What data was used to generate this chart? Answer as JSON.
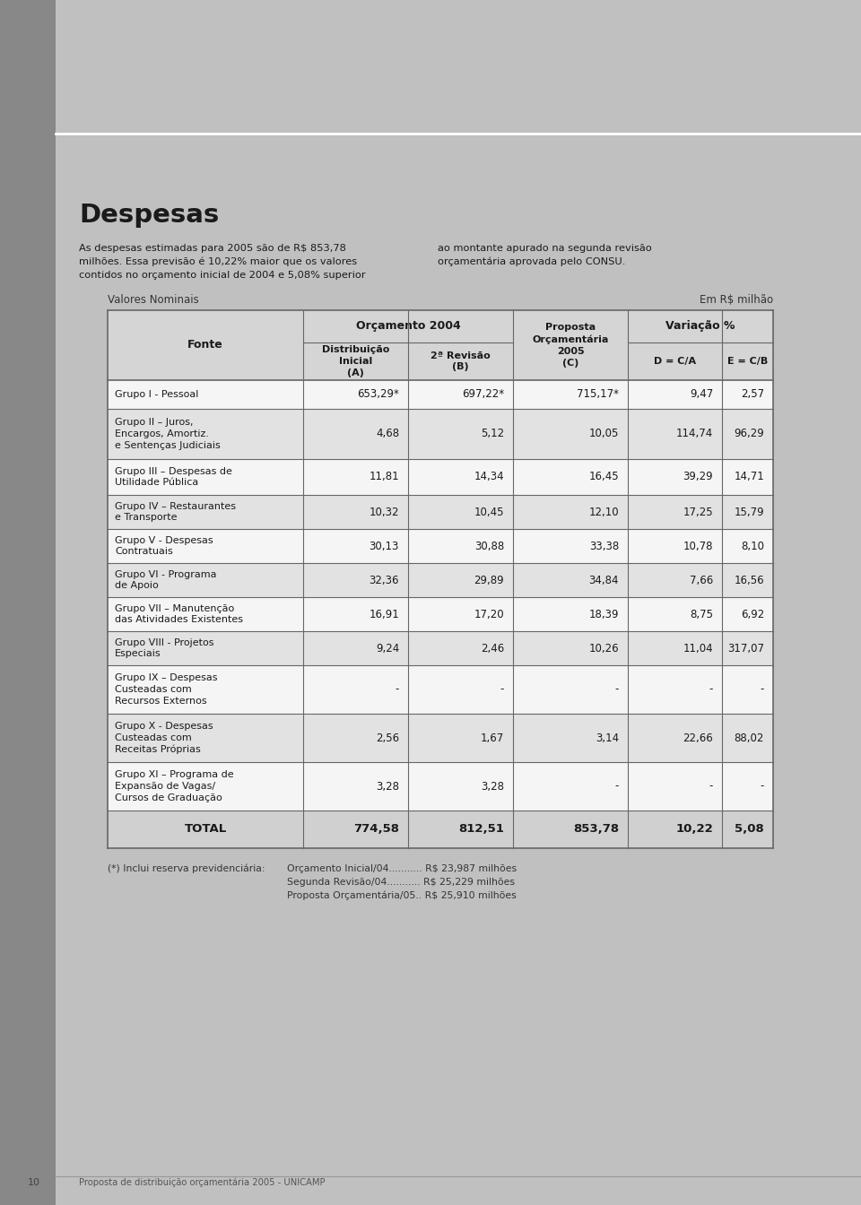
{
  "page_bg": "#b5b5b5",
  "left_strip_color": "#888888",
  "content_bg": "#c0c0c0",
  "title": "Despesas",
  "paragraph_left": "As despesas estimadas para 2005 são de R$ 853,78\nmilhões. Essa previsão é 10,22% maior que os valores\ncontidos no orçamento inicial de 2004 e 5,08% superior",
  "paragraph_right": "ao montante apurado na segunda revisão\norçamentária aprovada pelo CONSU.",
  "table_label_left": "Valores Nominais",
  "table_label_right": "Em R$ milhão",
  "rows": [
    {
      "fonte": "Grupo I - Pessoal",
      "a": "653,29*",
      "b": "697,22*",
      "c": "715,17*",
      "d": "9,47",
      "e": "2,57",
      "shade": false
    },
    {
      "fonte": "Grupo II – Juros,\nEncargos, Amortiz.\ne Sentenças Judiciais",
      "a": "4,68",
      "b": "5,12",
      "c": "10,05",
      "d": "114,74",
      "e": "96,29",
      "shade": true
    },
    {
      "fonte": "Grupo III – Despesas de\nUtilidade Pública",
      "a": "11,81",
      "b": "14,34",
      "c": "16,45",
      "d": "39,29",
      "e": "14,71",
      "shade": false
    },
    {
      "fonte": "Grupo IV – Restaurantes\ne Transporte",
      "a": "10,32",
      "b": "10,45",
      "c": "12,10",
      "d": "17,25",
      "e": "15,79",
      "shade": true
    },
    {
      "fonte": "Grupo V - Despesas\nContratuais",
      "a": "30,13",
      "b": "30,88",
      "c": "33,38",
      "d": "10,78",
      "e": "8,10",
      "shade": false
    },
    {
      "fonte": "Grupo VI - Programa\nde Apoio",
      "a": "32,36",
      "b": "29,89",
      "c": "34,84",
      "d": "7,66",
      "e": "16,56",
      "shade": true
    },
    {
      "fonte": "Grupo VII – Manutenção\ndas Atividades Existentes",
      "a": "16,91",
      "b": "17,20",
      "c": "18,39",
      "d": "8,75",
      "e": "6,92",
      "shade": false
    },
    {
      "fonte": "Grupo VIII - Projetos\nEspeciais",
      "a": "9,24",
      "b": "2,46",
      "c": "10,26",
      "d": "11,04",
      "e": "317,07",
      "shade": true
    },
    {
      "fonte": "Grupo IX – Despesas\nCusteadas com\nRecursos Externos",
      "a": "-",
      "b": "-",
      "c": "-",
      "d": "-",
      "e": "-",
      "shade": false
    },
    {
      "fonte": "Grupo X - Despesas\nCusteadas com\nReceitas Próprias",
      "a": "2,56",
      "b": "1,67",
      "c": "3,14",
      "d": "22,66",
      "e": "88,02",
      "shade": true
    },
    {
      "fonte": "Grupo XI – Programa de\nExpansão de Vagas/\nCursos de Graduação",
      "a": "3,28",
      "b": "3,28",
      "c": "-",
      "d": "-",
      "e": "-",
      "shade": false
    }
  ],
  "total_row": {
    "fonte": "TOTAL",
    "a": "774,58",
    "b": "812,51",
    "c": "853,78",
    "d": "10,22",
    "e": "5,08"
  },
  "footnote_label": "(*) Inclui reserva previdenciária:",
  "footnote_lines": [
    "Orçamento Inicial/04........... R$ 23,987 milhões",
    "Segunda Revisão/04........... R$ 25,229 milhões",
    "Proposta Orçamentária/05.. R$ 25,910 milhões"
  ],
  "footer_text": "Proposta de distribuição orçamentária 2005 - UNICAMP",
  "page_number": "10",
  "table_border_color": "#666666",
  "table_row_white": "#f5f5f5",
  "table_row_shade": "#e2e2e2",
  "table_header_bg": "#d5d5d5",
  "table_total_bg": "#d0d0d0"
}
